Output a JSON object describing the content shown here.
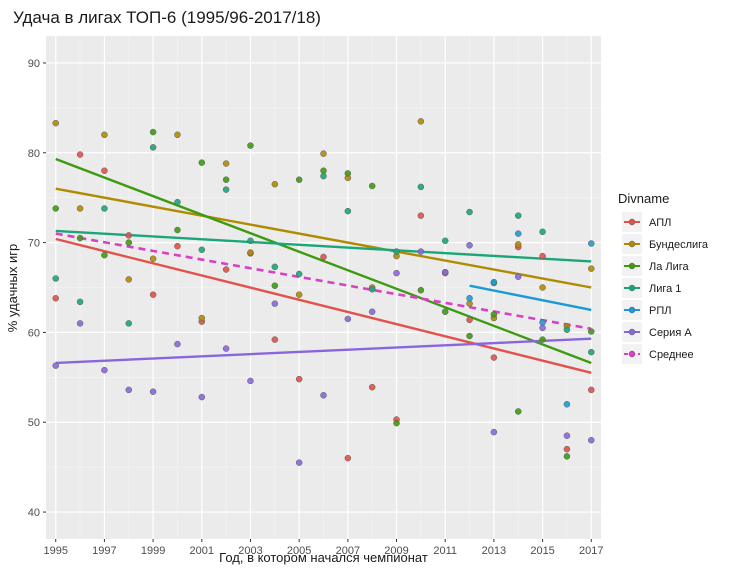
{
  "chart_data": {
    "type": "scatter",
    "title": "Удача в лигах ТОП-6 (1995/96-2017/18)",
    "xlabel": "Год, в котором начался чемпионат",
    "ylabel": "% удачных игр",
    "xlim": [
      1994.6,
      2017.4
    ],
    "ylim": [
      37,
      93
    ],
    "x_ticks": [
      1995,
      1997,
      1999,
      2001,
      2003,
      2005,
      2007,
      2009,
      2011,
      2013,
      2015,
      2017
    ],
    "y_ticks": [
      40,
      50,
      60,
      70,
      80,
      90
    ],
    "legend": {
      "title": "Divname",
      "position": "right"
    },
    "series": [
      {
        "name": "АПЛ",
        "color": "#e0524a",
        "points": [
          [
            1995,
            63.8
          ],
          [
            1996,
            79.8
          ],
          [
            1997,
            78
          ],
          [
            1998,
            70.8
          ],
          [
            1999,
            64.2
          ],
          [
            2000,
            69.6
          ],
          [
            2001,
            61.2
          ],
          [
            2002,
            67
          ],
          [
            2003,
            68.8
          ],
          [
            2004,
            59.2
          ],
          [
            2005,
            54.8
          ],
          [
            2006,
            68.4
          ],
          [
            2007,
            46
          ],
          [
            2008,
            53.9
          ],
          [
            2009,
            50.3
          ],
          [
            2010,
            73
          ],
          [
            2011,
            66.7
          ],
          [
            2012,
            61.4
          ],
          [
            2013,
            57.2
          ],
          [
            2014,
            69.5
          ],
          [
            2015,
            68.5
          ],
          [
            2016,
            47
          ],
          [
            2017,
            53.6
          ]
        ],
        "trend": [
          [
            1995,
            70.4
          ],
          [
            2017,
            55.5
          ]
        ]
      },
      {
        "name": "Бундеслига",
        "color": "#b08b00",
        "points": [
          [
            1995,
            83.3
          ],
          [
            1996,
            73.8
          ],
          [
            1997,
            82
          ],
          [
            1998,
            65.9
          ],
          [
            1999,
            68.2
          ],
          [
            2000,
            82
          ],
          [
            2001,
            61.6
          ],
          [
            2002,
            78.8
          ],
          [
            2003,
            68.9
          ],
          [
            2004,
            76.5
          ],
          [
            2005,
            64.2
          ],
          [
            2006,
            79.9
          ],
          [
            2007,
            77.2
          ],
          [
            2008,
            65
          ],
          [
            2009,
            68.5
          ],
          [
            2010,
            83.5
          ],
          [
            2011,
            66.6
          ],
          [
            2012,
            63.2
          ],
          [
            2013,
            61.6
          ],
          [
            2014,
            69.8
          ],
          [
            2015,
            65
          ],
          [
            2016,
            60.7
          ],
          [
            2017,
            67.1
          ]
        ],
        "trend": [
          [
            1995,
            76
          ],
          [
            2017,
            65
          ]
        ]
      },
      {
        "name": "Ла Лига",
        "color": "#3d9b10",
        "points": [
          [
            1995,
            73.8
          ],
          [
            1996,
            70.5
          ],
          [
            1997,
            68.6
          ],
          [
            1998,
            70
          ],
          [
            1999,
            82.3
          ],
          [
            2000,
            71.4
          ],
          [
            2001,
            78.9
          ],
          [
            2002,
            77
          ],
          [
            2003,
            80.8
          ],
          [
            2004,
            65.2
          ],
          [
            2005,
            77
          ],
          [
            2006,
            78
          ],
          [
            2007,
            77.7
          ],
          [
            2008,
            76.3
          ],
          [
            2009,
            49.9
          ],
          [
            2010,
            64.7
          ],
          [
            2011,
            62.3
          ],
          [
            2012,
            59.6
          ],
          [
            2013,
            62
          ],
          [
            2014,
            51.2
          ],
          [
            2015,
            59.2
          ],
          [
            2016,
            46.2
          ],
          [
            2017,
            60.1
          ]
        ],
        "trend": [
          [
            1995,
            79.3
          ],
          [
            2017,
            56.6
          ]
        ]
      },
      {
        "name": "Лига 1",
        "color": "#1aa67a",
        "points": [
          [
            1995,
            66
          ],
          [
            1996,
            63.4
          ],
          [
            1997,
            73.8
          ],
          [
            1998,
            61
          ],
          [
            1999,
            80.6
          ],
          [
            2000,
            74.5
          ],
          [
            2001,
            69.2
          ],
          [
            2002,
            75.9
          ],
          [
            2003,
            70.2
          ],
          [
            2004,
            67.3
          ],
          [
            2005,
            66.5
          ],
          [
            2006,
            77.4
          ],
          [
            2007,
            73.5
          ],
          [
            2008,
            64.8
          ],
          [
            2009,
            69
          ],
          [
            2010,
            76.2
          ],
          [
            2011,
            70.2
          ],
          [
            2012,
            73.4
          ],
          [
            2013,
            65.5
          ],
          [
            2014,
            73
          ],
          [
            2015,
            71.2
          ],
          [
            2016,
            60.3
          ],
          [
            2017,
            57.8
          ]
        ],
        "trend": [
          [
            1995,
            71.3
          ],
          [
            2017,
            67.9
          ]
        ]
      },
      {
        "name": "РПЛ",
        "color": "#1a9bd6",
        "points": [
          [
            2012,
            63.8
          ],
          [
            2013,
            65.6
          ],
          [
            2014,
            71
          ],
          [
            2015,
            61.1
          ],
          [
            2016,
            52
          ],
          [
            2017,
            69.9
          ]
        ],
        "trend": [
          [
            2012,
            65.2
          ],
          [
            2017,
            62.5
          ]
        ]
      },
      {
        "name": "Серия А",
        "color": "#8a66dd",
        "points": [
          [
            1995,
            56.3
          ],
          [
            1996,
            61
          ],
          [
            1997,
            55.8
          ],
          [
            1998,
            53.6
          ],
          [
            1999,
            53.4
          ],
          [
            2000,
            58.7
          ],
          [
            2001,
            52.8
          ],
          [
            2002,
            58.2
          ],
          [
            2003,
            54.6
          ],
          [
            2004,
            63.2
          ],
          [
            2005,
            45.5
          ],
          [
            2006,
            53
          ],
          [
            2007,
            61.5
          ],
          [
            2008,
            62.3
          ],
          [
            2009,
            66.6
          ],
          [
            2010,
            69
          ],
          [
            2011,
            66.7
          ],
          [
            2012,
            69.7
          ],
          [
            2013,
            48.9
          ],
          [
            2014,
            66.2
          ],
          [
            2015,
            60.5
          ],
          [
            2016,
            48.5
          ],
          [
            2017,
            48
          ]
        ],
        "trend": [
          [
            1995,
            56.6
          ],
          [
            2017,
            59.3
          ]
        ]
      },
      {
        "name": "Среднее",
        "color": "#d940c6",
        "dashed": true,
        "points": [],
        "trend": [
          [
            1995,
            71
          ],
          [
            2017,
            60.4
          ]
        ]
      }
    ]
  }
}
